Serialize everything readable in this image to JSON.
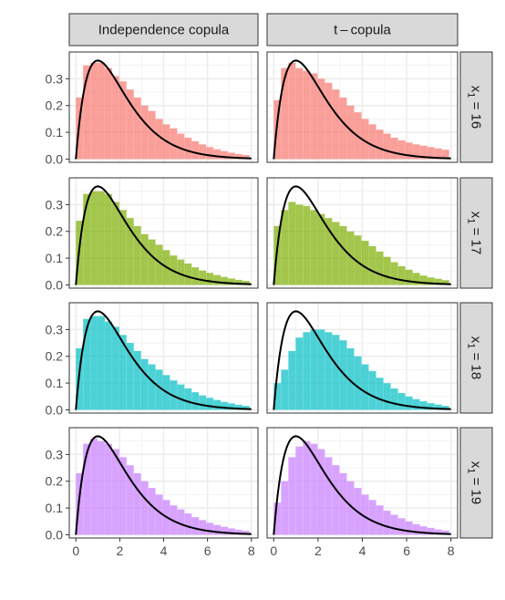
{
  "chart_data": {
    "type": "histogram-facet-grid",
    "col_facets": [
      "Independence copula",
      "t – copula"
    ],
    "row_facets": [
      {
        "prefix": "x",
        "sub": "1",
        "eq": " = 16",
        "color": "#F8766D"
      },
      {
        "prefix": "x",
        "sub": "1",
        "eq": " = 17",
        "color": "#7CAE00"
      },
      {
        "prefix": "x",
        "sub": "1",
        "eq": " = 18",
        "color": "#00BFC4"
      },
      {
        "prefix": "x",
        "sub": "1",
        "eq": " = 19",
        "color": "#C77CFF"
      }
    ],
    "xlim": [
      -0.3,
      8.3
    ],
    "ylim": [
      -0.012,
      0.4
    ],
    "x_ticks": [
      0,
      2,
      4,
      6,
      8
    ],
    "x_tick_labels": [
      "0",
      "2",
      "4",
      "6",
      "8"
    ],
    "y_ticks": [
      0.0,
      0.1,
      0.2,
      0.3
    ],
    "y_tick_labels": [
      "0.0",
      "0.1",
      "0.2",
      "0.3"
    ],
    "bin_width": 0.33,
    "bin_start": 0.0,
    "curve": {
      "description": "Gamma(shape 2, rate 1) density",
      "shape": 2,
      "rate": 1,
      "color": "#000000"
    },
    "histograms": [
      [
        [
          0.23,
          0.35,
          0.36,
          0.36,
          0.34,
          0.31,
          0.29,
          0.26,
          0.23,
          0.2,
          0.18,
          0.15,
          0.13,
          0.115,
          0.095,
          0.08,
          0.067,
          0.055,
          0.045,
          0.037,
          0.03,
          0.024,
          0.019,
          0.015
        ],
        [
          0.22,
          0.34,
          0.36,
          0.34,
          0.33,
          0.32,
          0.3,
          0.285,
          0.26,
          0.23,
          0.2,
          0.175,
          0.15,
          0.13,
          0.11,
          0.095,
          0.08,
          0.07,
          0.062,
          0.055,
          0.05,
          0.045,
          0.04,
          0.035
        ]
      ],
      [
        [
          0.24,
          0.34,
          0.35,
          0.35,
          0.34,
          0.31,
          0.28,
          0.25,
          0.22,
          0.19,
          0.17,
          0.15,
          0.13,
          0.11,
          0.095,
          0.08,
          0.066,
          0.054,
          0.045,
          0.037,
          0.03,
          0.024,
          0.019,
          0.015
        ],
        [
          0.22,
          0.28,
          0.31,
          0.3,
          0.295,
          0.28,
          0.265,
          0.25,
          0.235,
          0.22,
          0.2,
          0.185,
          0.165,
          0.145,
          0.125,
          0.105,
          0.085,
          0.07,
          0.057,
          0.045,
          0.035,
          0.028,
          0.023,
          0.018
        ]
      ],
      [
        [
          0.23,
          0.34,
          0.35,
          0.35,
          0.33,
          0.31,
          0.28,
          0.25,
          0.22,
          0.19,
          0.17,
          0.15,
          0.13,
          0.11,
          0.095,
          0.08,
          0.066,
          0.054,
          0.045,
          0.037,
          0.03,
          0.024,
          0.019,
          0.015
        ],
        [
          0.1,
          0.15,
          0.22,
          0.27,
          0.29,
          0.3,
          0.3,
          0.29,
          0.28,
          0.26,
          0.23,
          0.2,
          0.17,
          0.145,
          0.12,
          0.1,
          0.08,
          0.063,
          0.05,
          0.04,
          0.032,
          0.025,
          0.02,
          0.015
        ]
      ],
      [
        [
          0.23,
          0.34,
          0.36,
          0.35,
          0.34,
          0.32,
          0.29,
          0.26,
          0.23,
          0.2,
          0.175,
          0.15,
          0.13,
          0.11,
          0.095,
          0.08,
          0.066,
          0.055,
          0.045,
          0.037,
          0.03,
          0.024,
          0.019,
          0.015
        ],
        [
          0.12,
          0.2,
          0.29,
          0.33,
          0.35,
          0.34,
          0.32,
          0.29,
          0.26,
          0.23,
          0.2,
          0.175,
          0.15,
          0.13,
          0.11,
          0.09,
          0.075,
          0.062,
          0.05,
          0.04,
          0.032,
          0.026,
          0.02,
          0.016
        ]
      ]
    ]
  }
}
